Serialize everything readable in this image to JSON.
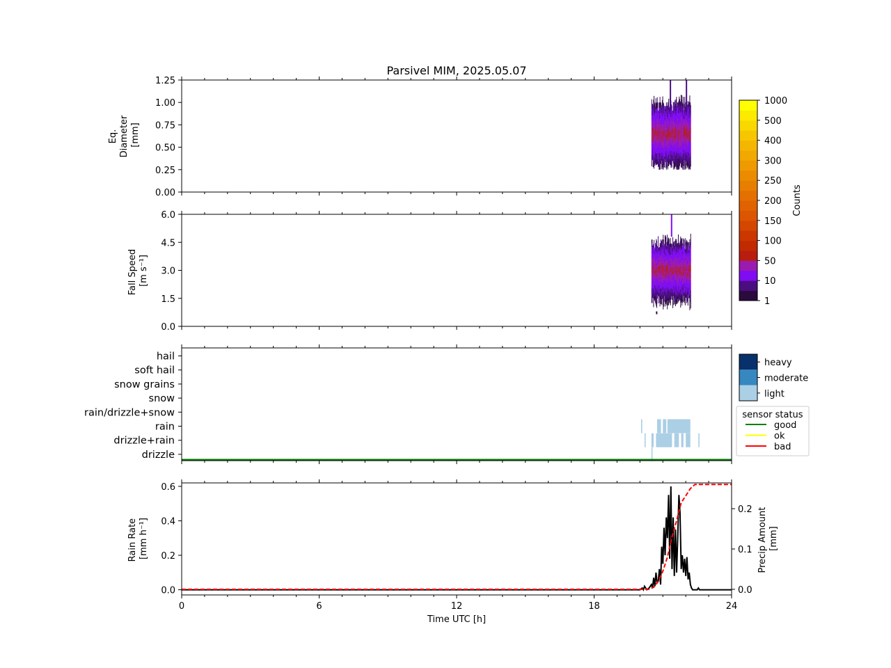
{
  "figure": {
    "title": "Parsivel MIM, 2025.05.07"
  },
  "chart_data": [
    {
      "id": "diameter",
      "type": "heatmap",
      "ylabel_lines": [
        "Eq.",
        "Diameter",
        "[mm]"
      ],
      "xlim": [
        0,
        24
      ],
      "ylim": [
        0,
        1.25
      ],
      "yticks": [
        "0.00",
        "0.25",
        "0.50",
        "0.75",
        "1.00",
        "1.25"
      ],
      "active_period_h": [
        20.5,
        22.2
      ],
      "value_range": [
        0.25,
        1.25
      ],
      "peak_value": 1.25
    },
    {
      "id": "fall_speed",
      "type": "heatmap",
      "ylabel_lines": [
        "Fall Speed",
        "[m s⁻¹]"
      ],
      "xlim": [
        0,
        24
      ],
      "ylim": [
        0,
        6
      ],
      "yticks": [
        "0.0",
        "1.5",
        "3.0",
        "4.5",
        "6.0"
      ],
      "active_period_h": [
        20.5,
        22.2
      ],
      "value_range": [
        0.4,
        5.0
      ],
      "peak_value": 6.0
    },
    {
      "id": "precip_type",
      "type": "heatmap",
      "categories": [
        "hail",
        "soft hail",
        "snow grains",
        "snow",
        "rain/drizzle+snow",
        "rain",
        "drizzle+rain",
        "drizzle"
      ],
      "xlim": [
        0,
        24
      ],
      "events": [
        {
          "category": "rain",
          "intensity": "light",
          "start_h": 20.05,
          "end_h": 20.1
        },
        {
          "category": "rain",
          "intensity": "light",
          "start_h": 20.75,
          "end_h": 20.92
        },
        {
          "category": "rain",
          "intensity": "light",
          "start_h": 21.0,
          "end_h": 21.15
        },
        {
          "category": "rain",
          "intensity": "light",
          "start_h": 21.2,
          "end_h": 22.2
        },
        {
          "category": "drizzle+rain",
          "intensity": "light",
          "start_h": 20.2,
          "end_h": 20.25
        },
        {
          "category": "drizzle+rain",
          "intensity": "light",
          "start_h": 20.5,
          "end_h": 20.6
        },
        {
          "category": "drizzle+rain",
          "intensity": "light",
          "start_h": 20.7,
          "end_h": 21.4
        },
        {
          "category": "drizzle+rain",
          "intensity": "light",
          "start_h": 21.5,
          "end_h": 21.7
        },
        {
          "category": "drizzle+rain",
          "intensity": "light",
          "start_h": 21.8,
          "end_h": 21.9
        },
        {
          "category": "drizzle+rain",
          "intensity": "light",
          "start_h": 22.0,
          "end_h": 22.2
        },
        {
          "category": "drizzle+rain",
          "intensity": "light",
          "start_h": 22.55,
          "end_h": 22.6
        },
        {
          "category": "drizzle",
          "intensity": "light",
          "start_h": 20.5,
          "end_h": 20.55
        }
      ],
      "sensor_status": [
        {
          "status": "good",
          "start_h": 0,
          "end_h": 24
        }
      ]
    },
    {
      "id": "rain",
      "type": "line",
      "xlabel": "Time UTC [h]",
      "ylabel_lines": [
        "Rain Rate",
        "[mm h⁻¹]"
      ],
      "y2label_lines": [
        "Precip Amount",
        "[mm]"
      ],
      "xlim": [
        0,
        24
      ],
      "xticks": [
        "0",
        "6",
        "12",
        "18",
        "24"
      ],
      "ylim": [
        -0.03,
        0.62
      ],
      "yticks": [
        "0.0",
        "0.2",
        "0.4",
        "0.6"
      ],
      "y2lim": [
        -0.014,
        0.264
      ],
      "y2ticks": [
        "0.0",
        "0.1",
        "0.2"
      ],
      "series": [
        {
          "role": "rain_rate",
          "color": "#000000",
          "style": "solid",
          "x": [
            0,
            20.0,
            20.1,
            20.15,
            20.2,
            20.3,
            20.4,
            20.5,
            20.55,
            20.6,
            20.65,
            20.7,
            20.75,
            20.8,
            20.85,
            20.9,
            20.95,
            21.0,
            21.05,
            21.1,
            21.15,
            21.2,
            21.25,
            21.3,
            21.35,
            21.4,
            21.45,
            21.5,
            21.55,
            21.6,
            21.65,
            21.7,
            21.75,
            21.8,
            21.85,
            21.9,
            21.95,
            22.0,
            22.05,
            22.1,
            22.15,
            22.2,
            22.25,
            22.3,
            22.5,
            22.55,
            22.6,
            24
          ],
          "y": [
            0,
            0,
            0.01,
            0.0,
            0.02,
            0.0,
            0.01,
            0.03,
            0.01,
            0.07,
            0.02,
            0.1,
            0.04,
            0.05,
            0.12,
            0.03,
            0.25,
            0.15,
            0.36,
            0.2,
            0.42,
            0.3,
            0.55,
            0.18,
            0.6,
            0.12,
            0.42,
            0.08,
            0.35,
            0.1,
            0.3,
            0.55,
            0.45,
            0.12,
            0.2,
            0.1,
            0.18,
            0.08,
            0.19,
            0.06,
            0.1,
            0.03,
            0.01,
            0.0,
            0.0,
            0.01,
            0.0,
            0.0
          ]
        },
        {
          "role": "precip_amount",
          "color": "#ff0000",
          "style": "dashed",
          "axis": "right",
          "x": [
            0,
            20.4,
            20.6,
            20.8,
            21.0,
            21.2,
            21.4,
            21.6,
            21.8,
            22.0,
            22.2,
            22.4,
            24
          ],
          "y": [
            0,
            0,
            0.005,
            0.02,
            0.045,
            0.08,
            0.13,
            0.17,
            0.215,
            0.232,
            0.25,
            0.26,
            0.26
          ]
        }
      ]
    }
  ],
  "colorbar": {
    "label": "Counts",
    "ticks": [
      "1",
      "10",
      "50",
      "100",
      "150",
      "200",
      "250",
      "300",
      "400",
      "500",
      "1000"
    ],
    "colors": [
      "#2b0a3d",
      "#4a0e80",
      "#7f0cf2",
      "#9b1ab0",
      "#b81d10",
      "#c22a00",
      "#cc3700",
      "#d44700",
      "#dc5500",
      "#e06200",
      "#e47000",
      "#e87e00",
      "#eb8c00",
      "#ee9a00",
      "#f1a800",
      "#f4b600",
      "#f7c600",
      "#f9d800",
      "#fcea00",
      "#ffff00"
    ]
  },
  "intensity_legend": {
    "items": [
      {
        "label": "heavy",
        "color": "#08306b"
      },
      {
        "label": "moderate",
        "color": "#3787c0"
      },
      {
        "label": "light",
        "color": "#abcfe5"
      }
    ]
  },
  "sensor_legend": {
    "title": "sensor status",
    "items": [
      {
        "label": "good",
        "color": "#008000"
      },
      {
        "label": "ok",
        "color": "#ffff00"
      },
      {
        "label": "bad",
        "color": "#ff0000"
      }
    ]
  }
}
